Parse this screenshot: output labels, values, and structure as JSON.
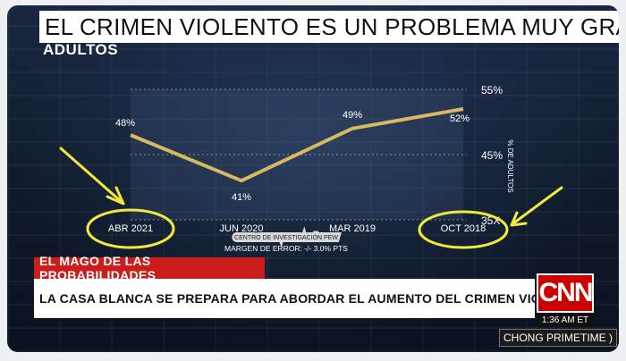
{
  "broadcast": {
    "headline": "EL CRIMEN VIOLENTO ES UN PROBLEMA MUY GRAVE",
    "subhead": "ADULTOS",
    "strap_label": "EL MAGO DE LAS PROBABILIDADES",
    "strap_main": "LA CASA BLANCA SE PREPARA PARA ABORDAR EL AUMENTO DEL CRIMEN VIOLENTO",
    "logo": "CNN",
    "clock": "1:36 AM ET",
    "show": "CHONG PRIMETIME )",
    "colors": {
      "strap_red": "#cc1d1d",
      "line": "#d8b860",
      "annotation": "#f2ea3a"
    }
  },
  "chart_data": {
    "type": "line",
    "categories": [
      "ABR 2021",
      "JUN 2020",
      "MAR 2019",
      "OCT 2018"
    ],
    "series": [
      {
        "values": [
          48,
          41,
          49,
          52
        ],
        "labels": [
          "48%",
          "41%",
          "49%",
          "52%"
        ]
      }
    ],
    "ylabel": "% DE ADULTOS",
    "ylim": [
      35,
      55
    ],
    "y_ticks": [
      "55%",
      "45%",
      "35X"
    ],
    "source": "CENTRO DE INVESTIGACIÓN PEW",
    "margin_note": "MARGEN DE ERROR: -/- 3.0% PTS",
    "grid": true,
    "annotations": [
      "circle-ABR 2021",
      "circle-OCT 2018",
      "arrow-ABR 2021",
      "arrow-OCT 2018"
    ]
  }
}
